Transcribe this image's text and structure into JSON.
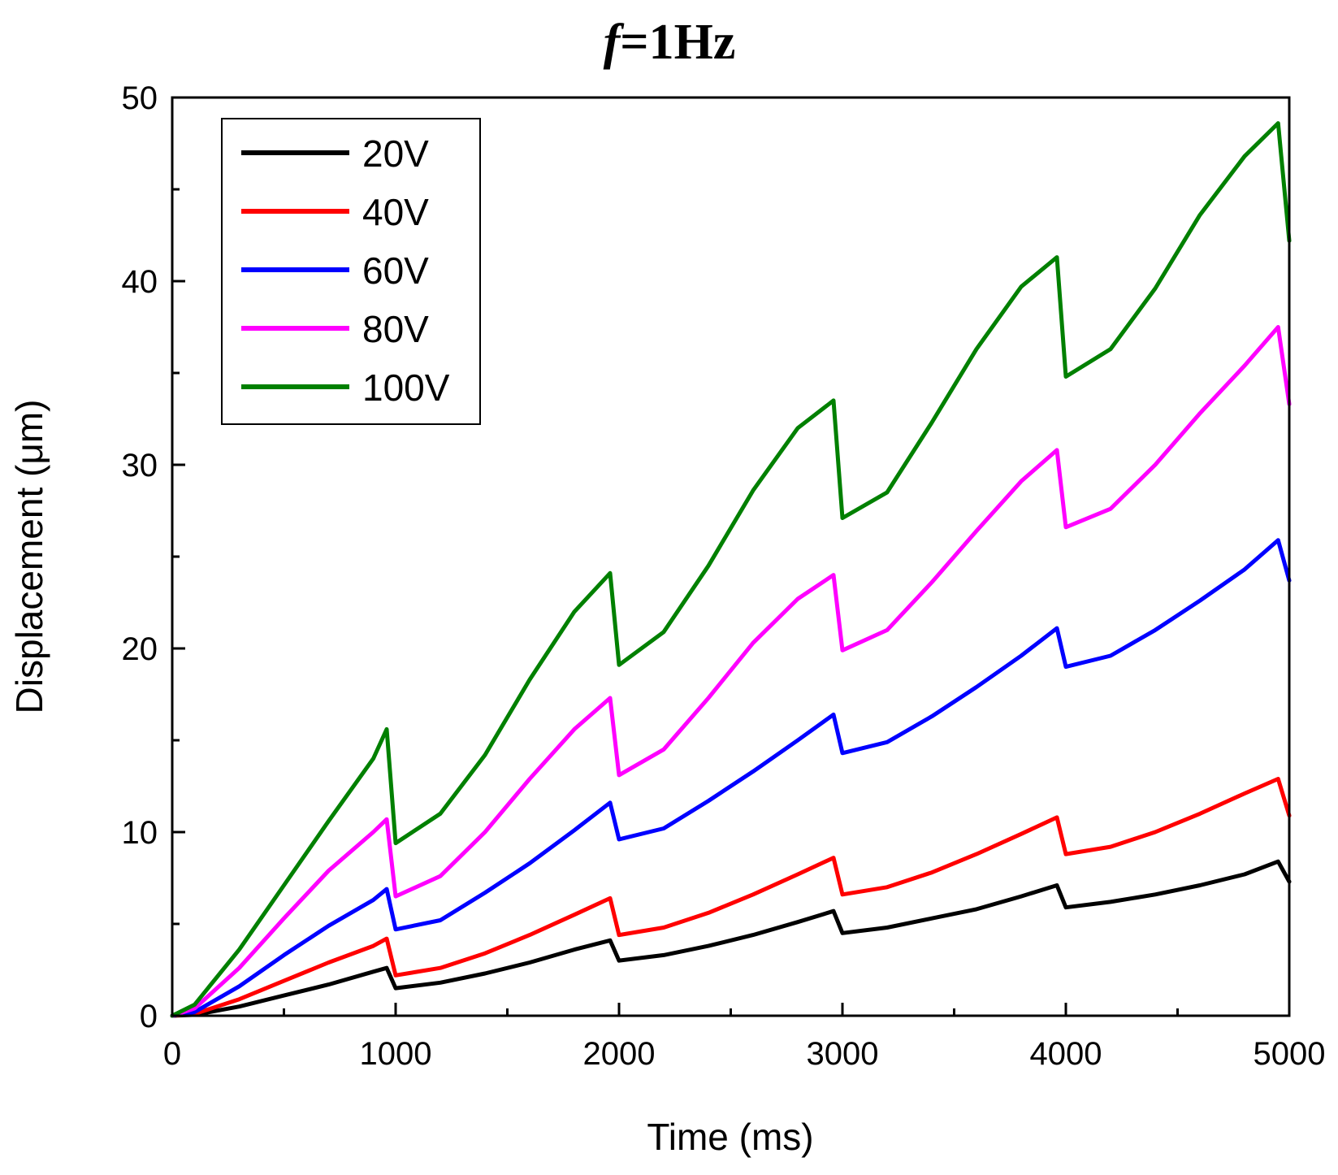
{
  "chart_data": {
    "type": "line",
    "title_italic": "f",
    "title_rest": "=1Hz",
    "xlabel": "Time (ms)",
    "ylabel": "Displacement (μm)",
    "xlim": [
      0,
      5000
    ],
    "ylim": [
      0,
      50
    ],
    "xticks": [
      0,
      1000,
      2000,
      3000,
      4000,
      5000
    ],
    "yticks": [
      0,
      10,
      20,
      30,
      40,
      50
    ],
    "legend_position": "top-left",
    "series": [
      {
        "name": "20V",
        "color": "#000000",
        "x": [
          0,
          100,
          300,
          500,
          700,
          900,
          960,
          1000,
          1200,
          1400,
          1600,
          1800,
          1960,
          2000,
          2200,
          2400,
          2600,
          2800,
          2960,
          3000,
          3200,
          3400,
          3600,
          3800,
          3960,
          4000,
          4200,
          4400,
          4600,
          4800,
          4950,
          5000
        ],
        "y": [
          0,
          0.05,
          0.5,
          1.1,
          1.7,
          2.4,
          2.6,
          1.5,
          1.8,
          2.3,
          2.9,
          3.6,
          4.1,
          3.0,
          3.3,
          3.8,
          4.4,
          5.1,
          5.7,
          4.5,
          4.8,
          5.3,
          5.8,
          6.5,
          7.1,
          5.9,
          6.2,
          6.6,
          7.1,
          7.7,
          8.4,
          7.3
        ]
      },
      {
        "name": "40V",
        "color": "#ff0000",
        "x": [
          0,
          100,
          300,
          500,
          700,
          900,
          960,
          1000,
          1200,
          1400,
          1600,
          1800,
          1960,
          2000,
          2200,
          2400,
          2600,
          2800,
          2960,
          3000,
          3200,
          3400,
          3600,
          3800,
          3960,
          4000,
          4200,
          4400,
          4600,
          4800,
          4950,
          5000
        ],
        "y": [
          0,
          0.1,
          0.9,
          1.9,
          2.9,
          3.8,
          4.2,
          2.2,
          2.6,
          3.4,
          4.4,
          5.5,
          6.4,
          4.4,
          4.8,
          5.6,
          6.6,
          7.7,
          8.6,
          6.6,
          7.0,
          7.8,
          8.8,
          9.9,
          10.8,
          8.8,
          9.2,
          10.0,
          11.0,
          12.1,
          12.9,
          10.9
        ]
      },
      {
        "name": "60V",
        "color": "#0000ff",
        "x": [
          0,
          100,
          300,
          500,
          700,
          900,
          960,
          1000,
          1200,
          1400,
          1600,
          1800,
          1960,
          2000,
          2200,
          2400,
          2600,
          2800,
          2960,
          3000,
          3200,
          3400,
          3600,
          3800,
          3960,
          4000,
          4200,
          4400,
          4600,
          4800,
          4950,
          5000
        ],
        "y": [
          0,
          0.2,
          1.6,
          3.3,
          4.9,
          6.3,
          6.9,
          4.7,
          5.2,
          6.7,
          8.3,
          10.1,
          11.6,
          9.6,
          10.2,
          11.7,
          13.3,
          15.0,
          16.4,
          14.3,
          14.9,
          16.3,
          17.9,
          19.6,
          21.1,
          19.0,
          19.6,
          21.0,
          22.6,
          24.3,
          25.9,
          23.7
        ]
      },
      {
        "name": "80V",
        "color": "#ff00ff",
        "x": [
          0,
          100,
          300,
          500,
          700,
          900,
          960,
          1000,
          1200,
          1400,
          1600,
          1800,
          1960,
          2000,
          2200,
          2400,
          2600,
          2800,
          2960,
          3000,
          3200,
          3400,
          3600,
          3800,
          3960,
          4000,
          4200,
          4400,
          4600,
          4800,
          4950,
          5000
        ],
        "y": [
          0,
          0.4,
          2.6,
          5.3,
          7.9,
          10.0,
          10.7,
          6.5,
          7.6,
          10.0,
          12.9,
          15.6,
          17.3,
          13.1,
          14.5,
          17.3,
          20.3,
          22.7,
          24.0,
          19.9,
          21.0,
          23.6,
          26.4,
          29.1,
          30.8,
          26.6,
          27.6,
          30.0,
          32.8,
          35.4,
          37.5,
          33.3
        ]
      },
      {
        "name": "100V",
        "color": "#008000",
        "x": [
          0,
          100,
          300,
          500,
          700,
          900,
          960,
          1000,
          1200,
          1400,
          1600,
          1800,
          1960,
          2000,
          2200,
          2400,
          2600,
          2800,
          2960,
          3000,
          3200,
          3400,
          3600,
          3800,
          3960,
          4000,
          4200,
          4400,
          4600,
          4800,
          4950,
          5000
        ],
        "y": [
          0,
          0.6,
          3.6,
          7.1,
          10.6,
          14.0,
          15.6,
          9.4,
          11.0,
          14.2,
          18.3,
          22.0,
          24.1,
          19.1,
          20.9,
          24.5,
          28.6,
          32.0,
          33.5,
          27.1,
          28.5,
          32.3,
          36.3,
          39.7,
          41.3,
          34.8,
          36.3,
          39.6,
          43.6,
          46.8,
          48.6,
          42.2
        ]
      }
    ]
  }
}
